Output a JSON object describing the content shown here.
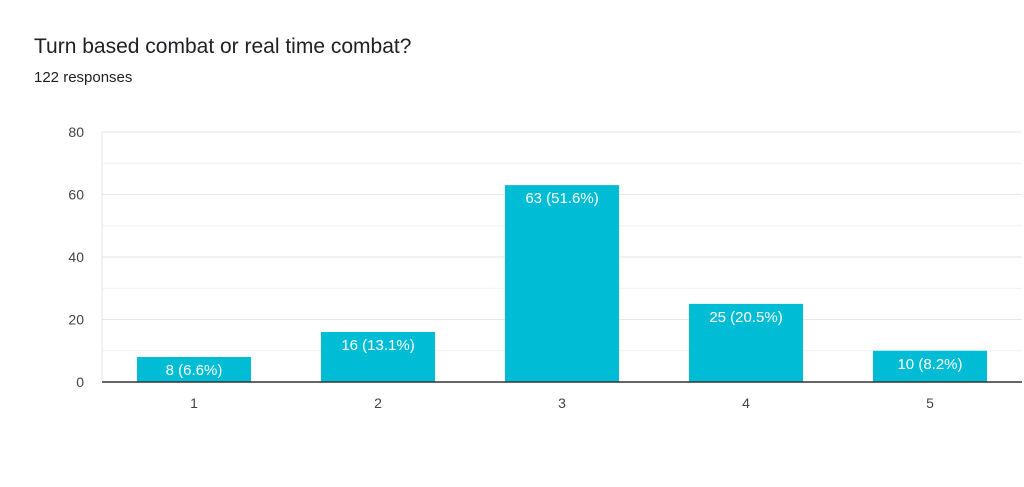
{
  "title": "Turn based combat or real time combat?",
  "subtitle": "122 responses",
  "colors": {
    "bar": "#00bcd4",
    "grid": "#e6e6e6",
    "axis": "#333333",
    "tick_text": "#444444",
    "bar_label": "#ffffff"
  },
  "chart_data": {
    "type": "bar",
    "categories": [
      "1",
      "2",
      "3",
      "4",
      "5"
    ],
    "values": [
      8,
      16,
      63,
      25,
      10
    ],
    "data_labels": [
      "8 (6.6%)",
      "16 (13.1%)",
      "63 (51.6%)",
      "25 (20.5%)",
      "10 (8.2%)"
    ],
    "ylim": [
      0,
      80
    ],
    "yticks": [
      0,
      20,
      40,
      60,
      80
    ],
    "minor_grid": true,
    "xlabel": "",
    "ylabel": ""
  }
}
